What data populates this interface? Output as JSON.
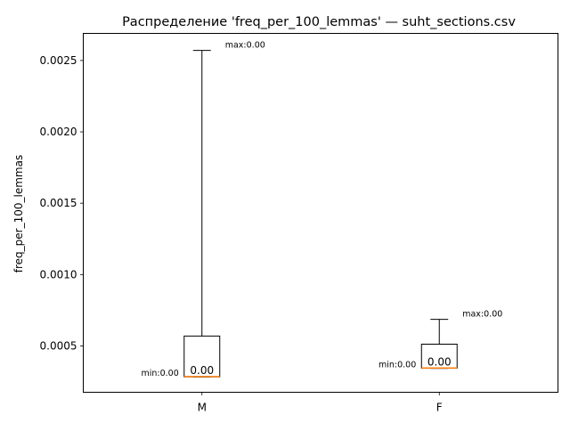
{
  "chart_data": {
    "type": "box",
    "title": "Распределение 'freq_per_100_lemmas' — suht_sections.csv",
    "xlabel": "",
    "ylabel": "freq_per_100_lemmas",
    "ylim": [
      0.000175,
      0.00269
    ],
    "yticks": [
      0.0005,
      0.001,
      0.0015,
      0.002,
      0.0025
    ],
    "ytick_labels": [
      "0.0005",
      "0.0010",
      "0.0015",
      "0.0020",
      "0.0025"
    ],
    "categories": [
      "M",
      "F"
    ],
    "boxes": [
      {
        "category": "M",
        "whisker_low": 0.000283,
        "q1": 0.000283,
        "median": 0.000285,
        "q3": 0.000569,
        "whisker_high": 0.002571,
        "median_label": "0.00",
        "min_label": "min:0.00",
        "max_label": "max:0.00"
      },
      {
        "category": "F",
        "whisker_low": 0.000343,
        "q1": 0.000343,
        "median": 0.000345,
        "q3": 0.000512,
        "whisker_high": 0.000686,
        "median_label": "0.00",
        "min_label": "min:0.00",
        "max_label": "max:0.00"
      }
    ],
    "colors": {
      "box": "#000000",
      "median": "#ff7f0e"
    },
    "grid": false
  }
}
